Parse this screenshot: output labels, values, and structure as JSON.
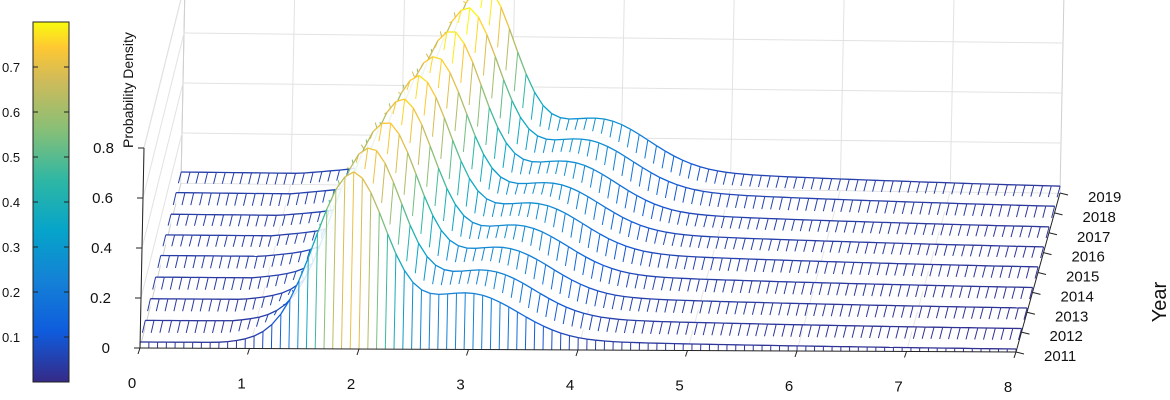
{
  "chart_data": {
    "type": "surface-3d",
    "colormap": "parula",
    "zlabel": "Probability Density",
    "ylabel": "Year",
    "xlabel": "",
    "xlim": [
      0,
      8
    ],
    "zlim": [
      0,
      0.8
    ],
    "colorbar_lim": [
      0,
      0.8
    ],
    "x_ticks": [
      "0",
      "1",
      "2",
      "3",
      "4",
      "5",
      "6",
      "7",
      "8"
    ],
    "z_ticks": [
      "0",
      "0.2",
      "0.4",
      "0.6",
      "0.8"
    ],
    "colorbar_ticks": [
      "0.1",
      "0.2",
      "0.3",
      "0.4",
      "0.5",
      "0.6",
      "0.7"
    ],
    "years": [
      "2011",
      "2012",
      "2013",
      "2014",
      "2015",
      "2016",
      "2017",
      "2018",
      "2019"
    ],
    "grid": true,
    "series": [
      {
        "name": "2011",
        "peak_x": 1.9,
        "peak_density": 0.7,
        "tail_density": 0.06
      },
      {
        "name": "2012",
        "peak_x": 2.0,
        "peak_density": 0.72,
        "tail_density": 0.07
      },
      {
        "name": "2013",
        "peak_x": 2.1,
        "peak_density": 0.74,
        "tail_density": 0.08
      },
      {
        "name": "2014",
        "peak_x": 2.2,
        "peak_density": 0.75,
        "tail_density": 0.09
      },
      {
        "name": "2015",
        "peak_x": 2.3,
        "peak_density": 0.76,
        "tail_density": 0.1
      },
      {
        "name": "2016",
        "peak_x": 2.4,
        "peak_density": 0.76,
        "tail_density": 0.1
      },
      {
        "name": "2017",
        "peak_x": 2.5,
        "peak_density": 0.78,
        "tail_density": 0.1
      },
      {
        "name": "2018",
        "peak_x": 2.6,
        "peak_density": 0.79,
        "tail_density": 0.11
      },
      {
        "name": "2019",
        "peak_x": 2.7,
        "peak_density": 0.8,
        "tail_density": 0.11
      }
    ]
  }
}
